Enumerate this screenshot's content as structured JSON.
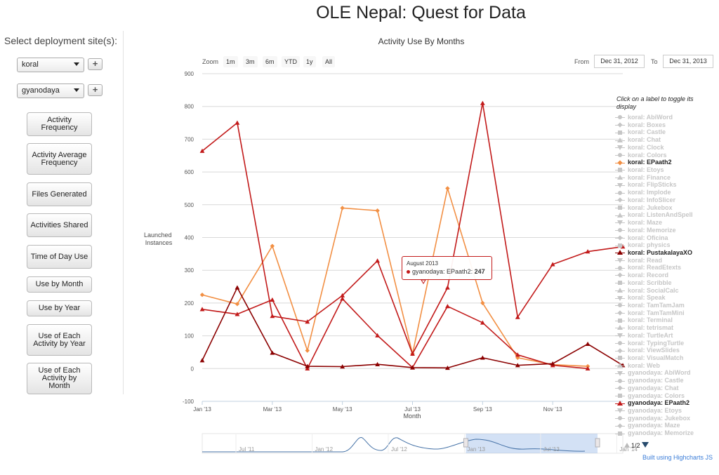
{
  "page": {
    "title": "OLE Nepal: Quest for Data"
  },
  "sidebar": {
    "heading": "Select deployment site(s):",
    "selects": [
      {
        "value": "koral",
        "add_label": "+"
      },
      {
        "value": "gyanodaya",
        "add_label": "+"
      }
    ],
    "buttons": [
      {
        "label": "Activity Frequency"
      },
      {
        "label": "Activity Average Frequency"
      },
      {
        "label": "Files Generated"
      },
      {
        "label": "Activities Shared"
      },
      {
        "label": "Time of Day Use"
      },
      {
        "label": "Use by Month"
      },
      {
        "label": "Use by Year"
      },
      {
        "label": "Use of Each Activity by Year"
      },
      {
        "label": "Use of Each Activity by Month"
      }
    ]
  },
  "controls": {
    "zoom_label": "Zoom",
    "ranges": [
      "1m",
      "3m",
      "6m",
      "YTD",
      "1y",
      "All"
    ],
    "from_label": "From",
    "from_value": "Dec 31, 2012",
    "to_label": "To",
    "to_value": "Dec 31, 2013"
  },
  "tooltip": {
    "date": "August 2013",
    "series": "gyanodaya: EPaath2:",
    "value": "247"
  },
  "legend": {
    "title": "Click on a label to toggle its display",
    "items": [
      {
        "name": "koral: AbiWord",
        "active": false,
        "symbol": "circle"
      },
      {
        "name": "koral: Boxes",
        "active": false,
        "symbol": "diamond"
      },
      {
        "name": "koral: Castle",
        "active": false,
        "symbol": "square"
      },
      {
        "name": "koral: Chat",
        "active": false,
        "symbol": "triangle"
      },
      {
        "name": "koral: Clock",
        "active": false,
        "symbol": "triangle-down"
      },
      {
        "name": "koral: Colors",
        "active": false,
        "symbol": "circle"
      },
      {
        "name": "koral: EPaath2",
        "active": true,
        "symbol": "diamond",
        "color": "#f28f43"
      },
      {
        "name": "koral: Etoys",
        "active": false,
        "symbol": "square"
      },
      {
        "name": "koral: Finance",
        "active": false,
        "symbol": "triangle"
      },
      {
        "name": "koral: FlipSticks",
        "active": false,
        "symbol": "triangle-down"
      },
      {
        "name": "koral: Implode",
        "active": false,
        "symbol": "circle"
      },
      {
        "name": "koral: InfoSlicer",
        "active": false,
        "symbol": "diamond"
      },
      {
        "name": "koral: Jukebox",
        "active": false,
        "symbol": "square"
      },
      {
        "name": "koral: ListenAndSpell",
        "active": false,
        "symbol": "triangle"
      },
      {
        "name": "koral: Maze",
        "active": false,
        "symbol": "triangle-down"
      },
      {
        "name": "koral: Memorize",
        "active": false,
        "symbol": "circle"
      },
      {
        "name": "koral: Oficina",
        "active": false,
        "symbol": "diamond"
      },
      {
        "name": "koral: physics",
        "active": false,
        "symbol": "square"
      },
      {
        "name": "koral: PustakalayaXO",
        "active": true,
        "symbol": "triangle",
        "color": "#8b0000"
      },
      {
        "name": "koral: Read",
        "active": false,
        "symbol": "triangle-down"
      },
      {
        "name": "koral: ReadEtexts",
        "active": false,
        "symbol": "circle"
      },
      {
        "name": "koral: Record",
        "active": false,
        "symbol": "diamond"
      },
      {
        "name": "koral: Scribble",
        "active": false,
        "symbol": "square"
      },
      {
        "name": "koral: SocialCalc",
        "active": false,
        "symbol": "triangle"
      },
      {
        "name": "koral: Speak",
        "active": false,
        "symbol": "triangle-down"
      },
      {
        "name": "koral: TamTamJam",
        "active": false,
        "symbol": "circle"
      },
      {
        "name": "koral: TamTamMini",
        "active": false,
        "symbol": "diamond"
      },
      {
        "name": "koral: Terminal",
        "active": false,
        "symbol": "square"
      },
      {
        "name": "koral: tetrismat",
        "active": false,
        "symbol": "triangle"
      },
      {
        "name": "koral: TurtleArt",
        "active": false,
        "symbol": "triangle-down"
      },
      {
        "name": "koral: TypingTurtle",
        "active": false,
        "symbol": "circle"
      },
      {
        "name": "koral: ViewSlides",
        "active": false,
        "symbol": "diamond"
      },
      {
        "name": "koral: VisualMatch",
        "active": false,
        "symbol": "square"
      },
      {
        "name": "koral: Web",
        "active": false,
        "symbol": "triangle"
      },
      {
        "name": "gyanodaya: AbiWord",
        "active": false,
        "symbol": "triangle-down"
      },
      {
        "name": "gyanodaya: Castle",
        "active": false,
        "symbol": "circle"
      },
      {
        "name": "gyanodaya: Chat",
        "active": false,
        "symbol": "diamond"
      },
      {
        "name": "gyanodaya: Colors",
        "active": false,
        "symbol": "square"
      },
      {
        "name": "gyanodaya: EPaath2",
        "active": true,
        "symbol": "triangle",
        "color": "#c21a1a"
      },
      {
        "name": "gyanodaya: Etoys",
        "active": false,
        "symbol": "triangle-down"
      },
      {
        "name": "gyanodaya: Jukebox",
        "active": false,
        "symbol": "circle"
      },
      {
        "name": "gyanodaya: Maze",
        "active": false,
        "symbol": "diamond"
      },
      {
        "name": "gyanodaya: Memorize",
        "active": false,
        "symbol": "square"
      }
    ],
    "page_indicator": "1/2"
  },
  "credits": "Built using Highcharts JS",
  "chart_data": {
    "type": "line",
    "title": "Activity Use By Months",
    "xlabel": "Month",
    "ylabel": "Launched Instances",
    "ylim": [
      -100,
      900
    ],
    "yticks": [
      -100,
      0,
      100,
      200,
      300,
      400,
      500,
      600,
      700,
      800,
      900
    ],
    "xticks": [
      "Jan '13",
      "Mar '13",
      "May '13",
      "Jul '13",
      "Sep '13",
      "Nov '13"
    ],
    "x": [
      "2013-01",
      "2013-02",
      "2013-03",
      "2013-04",
      "2013-05",
      "2013-06",
      "2013-07",
      "2013-08",
      "2013-09",
      "2013-10",
      "2013-11",
      "2013-12",
      "2014-01"
    ],
    "grid": true,
    "legend_position": "right",
    "series": [
      {
        "name": "koral: EPaath2",
        "color": "#f28f43",
        "marker": "diamond",
        "values": [
          225,
          197,
          374,
          55,
          490,
          482,
          45,
          550,
          200,
          33,
          12,
          7,
          null
        ]
      },
      {
        "name": "gyanodaya: EPaath2",
        "color": "#c21a1a",
        "marker": "triangle",
        "values": [
          181,
          166,
          210,
          0,
          213,
          101,
          3,
          190,
          140,
          42,
          10,
          0,
          null
        ]
      },
      {
        "name": "gyanodaya: EPaath2",
        "color": "#c21a1a",
        "marker": "triangle",
        "values": [
          664,
          750,
          160,
          143,
          223,
          329,
          45,
          247,
          810,
          157,
          318,
          357,
          372
        ]
      },
      {
        "name": "koral: PustakalayaXO",
        "color": "#8b0000",
        "marker": "triangle",
        "values": [
          25,
          247,
          48,
          7,
          6,
          13,
          3,
          2,
          33,
          10,
          15,
          75,
          10
        ]
      }
    ],
    "navigator": {
      "labels": [
        "Jul '11",
        "Jan '12",
        "Jul '12",
        "Jan '13",
        "Jul '13",
        "Jan '14"
      ],
      "selection": [
        "Jan '13",
        "Jan '14"
      ]
    }
  }
}
